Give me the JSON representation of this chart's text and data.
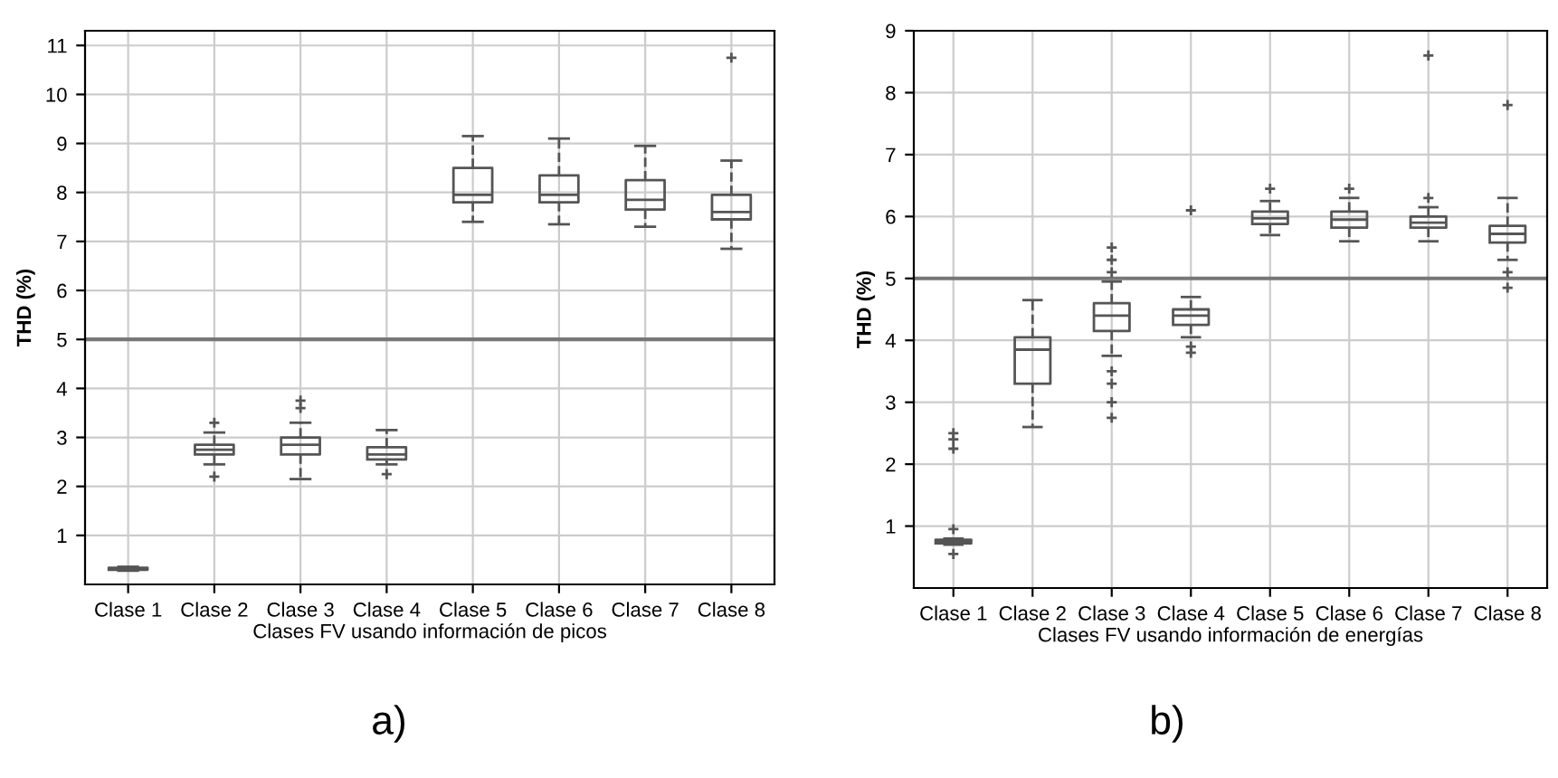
{
  "chart_data": [
    {
      "type": "box",
      "xlabel": "Clases FV usando información de picos",
      "ylabel": "THD (%)",
      "categories": [
        "Clase 1",
        "Clase 2",
        "Clase 3",
        "Clase 4",
        "Clase 5",
        "Clase 6",
        "Clase 7",
        "Clase 8"
      ],
      "ylim": [
        0,
        11.3
      ],
      "yticks": [
        1,
        2,
        3,
        4,
        5,
        6,
        7,
        8,
        9,
        10,
        11
      ],
      "grid": true,
      "marker": "cross",
      "color": "#555555",
      "annotations": [
        "a)"
      ],
      "ref_lines": [
        {
          "axis": "y",
          "value": 5,
          "color": "#777777"
        }
      ],
      "boxes": [
        {
          "low": 0.28,
          "q1": 0.3,
          "median": 0.32,
          "q3": 0.34,
          "high": 0.36
        },
        {
          "low": 2.45,
          "q1": 2.65,
          "median": 2.75,
          "q3": 2.85,
          "high": 3.1,
          "outliers": [
            3.3,
            2.2
          ]
        },
        {
          "low": 2.15,
          "q1": 2.65,
          "median": 2.85,
          "q3": 3.0,
          "high": 3.3,
          "outliers": [
            3.6,
            3.75
          ]
        },
        {
          "low": 2.45,
          "q1": 2.55,
          "median": 2.65,
          "q3": 2.8,
          "high": 3.15,
          "outliers": [
            2.25
          ]
        },
        {
          "low": 7.4,
          "q1": 7.8,
          "median": 7.95,
          "q3": 8.5,
          "high": 9.15
        },
        {
          "low": 7.35,
          "q1": 7.8,
          "median": 7.95,
          "q3": 8.35,
          "high": 9.1
        },
        {
          "low": 7.3,
          "q1": 7.65,
          "median": 7.85,
          "q3": 8.25,
          "high": 8.95
        },
        {
          "low": 6.85,
          "q1": 7.45,
          "median": 7.6,
          "q3": 7.95,
          "high": 8.65,
          "outliers": [
            10.75
          ]
        }
      ]
    },
    {
      "type": "box",
      "xlabel": "Clases FV usando información de energías",
      "ylabel": "THD (%)",
      "categories": [
        "Clase 1",
        "Clase 2",
        "Clase 3",
        "Clase 4",
        "Clase 5",
        "Clase 6",
        "Clase 7",
        "Clase 8"
      ],
      "ylim": [
        0,
        9
      ],
      "yticks": [
        1,
        2,
        3,
        4,
        5,
        6,
        7,
        8,
        9
      ],
      "grid": true,
      "marker": "cross",
      "color": "#555555",
      "annotations": [
        "b)"
      ],
      "ref_lines": [
        {
          "axis": "y",
          "value": 5,
          "color": "#777777"
        }
      ],
      "boxes": [
        {
          "low": 0.7,
          "q1": 0.72,
          "median": 0.75,
          "q3": 0.78,
          "high": 0.8,
          "outliers": [
            0.95,
            0.55,
            2.25,
            2.4,
            2.5
          ]
        },
        {
          "low": 2.6,
          "q1": 3.3,
          "median": 3.85,
          "q3": 4.05,
          "high": 4.65
        },
        {
          "low": 3.75,
          "q1": 4.15,
          "median": 4.4,
          "q3": 4.6,
          "high": 4.95,
          "outliers": [
            3.5,
            3.3,
            3.0,
            2.75,
            5.1,
            5.3,
            5.5
          ]
        },
        {
          "low": 4.05,
          "q1": 4.25,
          "median": 4.4,
          "q3": 4.5,
          "high": 4.7,
          "outliers": [
            3.9,
            3.8,
            6.1
          ]
        },
        {
          "low": 5.7,
          "q1": 5.88,
          "median": 5.97,
          "q3": 6.08,
          "high": 6.25,
          "outliers": [
            6.45
          ]
        },
        {
          "low": 5.6,
          "q1": 5.82,
          "median": 5.95,
          "q3": 6.08,
          "high": 6.3,
          "outliers": [
            6.45
          ]
        },
        {
          "low": 5.6,
          "q1": 5.82,
          "median": 5.9,
          "q3": 6.0,
          "high": 6.15,
          "outliers": [
            6.3,
            8.6
          ]
        },
        {
          "low": 5.3,
          "q1": 5.58,
          "median": 5.72,
          "q3": 5.85,
          "high": 6.3,
          "outliers": [
            5.1,
            4.85,
            7.8
          ]
        }
      ]
    }
  ]
}
